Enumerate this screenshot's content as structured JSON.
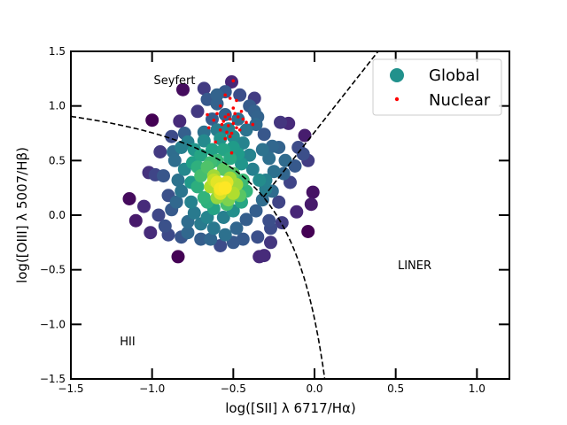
{
  "chart_data": {
    "type": "scatter",
    "xlabel": "log([SII] λ 6717/Hα)",
    "ylabel": "log([OIII] λ 5007/Hβ)",
    "xlim": [
      -1.5,
      1.2
    ],
    "ylim": [
      -1.5,
      1.5
    ],
    "xticks": [
      -1.5,
      -1.0,
      -0.5,
      0.0,
      0.5,
      1.0
    ],
    "xtick_labels": [
      "−1.5",
      "−1.0",
      "−0.5",
      "0.0",
      "0.5",
      "1.0"
    ],
    "yticks": [
      -1.5,
      -1.0,
      -0.5,
      0.0,
      0.5,
      1.0,
      1.5
    ],
    "ytick_labels": [
      "−1.5",
      "−1.0",
      "−0.5",
      "0.0",
      "0.5",
      "1.0",
      "1.5"
    ],
    "grid": false,
    "legend_position": "top-right",
    "legend": [
      {
        "label": "Global",
        "color": "#21918c",
        "marker": "large-circle"
      },
      {
        "label": "Nuclear",
        "color": "#ff0000",
        "marker": "small-dot"
      }
    ],
    "region_labels": [
      {
        "text": "Seyfert",
        "x": -1.0,
        "y": 1.22
      },
      {
        "text": "LINER",
        "x": 0.5,
        "y": -0.46
      },
      {
        "text": "HII",
        "x": -1.2,
        "y": -1.16
      }
    ],
    "boundaries": [
      {
        "name": "Kewley 2001 (star-forming / AGN)",
        "equation": "y = 0.72/(x - 0.32) + 1.30",
        "style": "dashed"
      },
      {
        "name": "Seyfert / LINER",
        "equation": "y = 1.89x + 0.76",
        "style": "dashed"
      }
    ],
    "colormap": "viridis",
    "series": [
      {
        "name": "Global",
        "color_by_density": true,
        "points": [
          [
            -0.51,
            1.22
          ],
          [
            -0.81,
            1.15
          ],
          [
            -0.68,
            1.16
          ],
          [
            -0.55,
            1.13
          ],
          [
            -0.37,
            1.07
          ],
          [
            -0.46,
            1.1
          ],
          [
            -0.66,
            1.06
          ],
          [
            -0.6,
            1.1
          ],
          [
            -0.37,
            0.95
          ],
          [
            -0.16,
            0.84
          ],
          [
            -0.21,
            0.85
          ],
          [
            -0.06,
            0.73
          ],
          [
            -0.1,
            0.62
          ],
          [
            -0.07,
            0.56
          ],
          [
            -0.04,
            0.5
          ],
          [
            -0.22,
            0.62
          ],
          [
            -0.18,
            0.5
          ],
          [
            -0.19,
            0.38
          ],
          [
            -0.01,
            0.21
          ],
          [
            -0.26,
            0.22
          ],
          [
            -0.02,
            0.1
          ],
          [
            -0.11,
            0.03
          ],
          [
            -0.2,
            -0.07
          ],
          [
            -0.04,
            -0.15
          ],
          [
            -0.27,
            -0.12
          ],
          [
            -0.27,
            -0.25
          ],
          [
            -0.31,
            -0.37
          ],
          [
            -0.34,
            -0.38
          ],
          [
            -0.64,
            -0.22
          ],
          [
            -0.78,
            -0.16
          ],
          [
            -0.84,
            -0.38
          ],
          [
            -1.1,
            -0.05
          ],
          [
            -1.14,
            0.15
          ],
          [
            -1.01,
            -0.16
          ],
          [
            -1.05,
            0.08
          ],
          [
            -0.98,
            0.37
          ],
          [
            -1.02,
            0.39
          ],
          [
            -0.95,
            0.58
          ],
          [
            -1.0,
            0.87
          ],
          [
            -0.83,
            0.86
          ],
          [
            -0.93,
            0.36
          ],
          [
            -0.87,
            0.58
          ],
          [
            -0.9,
            0.18
          ],
          [
            -0.82,
            -0.2
          ],
          [
            -0.8,
            0.75
          ],
          [
            -0.78,
            0.67
          ],
          [
            -0.44,
            0.66
          ],
          [
            -0.47,
            0.88
          ],
          [
            -0.55,
            0.92
          ],
          [
            -0.63,
            0.88
          ],
          [
            -0.68,
            0.76
          ],
          [
            -0.36,
            0.83
          ],
          [
            -0.31,
            0.74
          ],
          [
            -0.26,
            0.63
          ],
          [
            -0.32,
            0.6
          ],
          [
            -0.4,
            0.55
          ],
          [
            -0.5,
            0.72
          ],
          [
            -0.53,
            0.79
          ],
          [
            -0.58,
            0.7
          ],
          [
            -0.63,
            0.6
          ],
          [
            -0.7,
            0.55
          ],
          [
            -0.75,
            0.48
          ],
          [
            -0.8,
            0.42
          ],
          [
            -0.84,
            0.32
          ],
          [
            -0.82,
            0.22
          ],
          [
            -0.76,
            0.12
          ],
          [
            -0.74,
            0.02
          ],
          [
            -0.7,
            -0.08
          ],
          [
            -0.62,
            -0.12
          ],
          [
            -0.55,
            -0.18
          ],
          [
            -0.48,
            -0.12
          ],
          [
            -0.42,
            -0.04
          ],
          [
            -0.36,
            0.04
          ],
          [
            -0.32,
            0.14
          ],
          [
            -0.3,
            0.24
          ],
          [
            -0.34,
            0.32
          ],
          [
            -0.38,
            0.42
          ],
          [
            -0.45,
            0.47
          ],
          [
            -0.52,
            0.52
          ],
          [
            -0.6,
            0.5
          ],
          [
            -0.66,
            0.44
          ],
          [
            -0.7,
            0.36
          ],
          [
            -0.72,
            0.26
          ],
          [
            -0.68,
            0.16
          ],
          [
            -0.62,
            0.06
          ],
          [
            -0.56,
            -0.02
          ],
          [
            -0.5,
            0.04
          ],
          [
            -0.45,
            0.12
          ],
          [
            -0.42,
            0.22
          ],
          [
            -0.44,
            0.32
          ],
          [
            -0.5,
            0.38
          ],
          [
            -0.56,
            0.42
          ],
          [
            -0.62,
            0.36
          ],
          [
            -0.64,
            0.26
          ],
          [
            -0.6,
            0.16
          ],
          [
            -0.54,
            0.1
          ],
          [
            -0.5,
            0.2
          ],
          [
            -0.54,
            0.3
          ],
          [
            -0.58,
            0.24
          ],
          [
            -0.56,
            0.6
          ],
          [
            -0.5,
            0.62
          ],
          [
            -0.47,
            0.56
          ],
          [
            -0.55,
            0.25
          ],
          [
            -0.6,
            0.3
          ],
          [
            -0.58,
            0.2
          ],
          [
            -0.52,
            0.34
          ],
          [
            -0.48,
            0.28
          ],
          [
            -0.62,
            0.32
          ],
          [
            -0.66,
            0.12
          ],
          [
            -0.46,
            0.18
          ],
          [
            -0.53,
            0.14
          ],
          [
            -0.64,
            0.48
          ],
          [
            -0.74,
            0.6
          ],
          [
            -0.86,
            0.5
          ],
          [
            -0.88,
            0.05
          ],
          [
            -0.25,
            0.4
          ],
          [
            -0.15,
            0.3
          ],
          [
            -0.12,
            0.45
          ],
          [
            -0.35,
            0.9
          ],
          [
            -0.4,
            1.0
          ],
          [
            -0.6,
            1.02
          ],
          [
            -0.72,
            0.95
          ],
          [
            -0.28,
            -0.05
          ],
          [
            -0.5,
            -0.25
          ],
          [
            -0.58,
            -0.28
          ],
          [
            -0.7,
            -0.22
          ],
          [
            -0.92,
            -0.1
          ],
          [
            -0.96,
            0.0
          ],
          [
            -0.9,
            -0.18
          ],
          [
            -0.78,
            -0.06
          ],
          [
            -0.85,
            0.12
          ],
          [
            -0.76,
            0.3
          ],
          [
            -0.68,
            0.68
          ],
          [
            -0.6,
            0.78
          ],
          [
            -0.42,
            0.78
          ],
          [
            -0.28,
            0.52
          ],
          [
            -0.3,
            0.32
          ],
          [
            -0.22,
            0.12
          ],
          [
            -0.35,
            -0.2
          ],
          [
            -0.44,
            -0.22
          ],
          [
            -0.66,
            -0.02
          ],
          [
            -0.72,
            0.44
          ],
          [
            -0.82,
            0.62
          ],
          [
            -0.88,
            0.72
          ]
        ]
      },
      {
        "name": "Nuclear",
        "color": "#ff0000",
        "points": [
          [
            -0.5,
            1.23
          ],
          [
            -0.55,
            1.1
          ],
          [
            -0.52,
            1.07
          ],
          [
            -0.48,
            1.05
          ],
          [
            -0.58,
            1.0
          ],
          [
            -0.5,
            0.98
          ],
          [
            -0.45,
            0.95
          ],
          [
            -0.6,
            0.93
          ],
          [
            -0.55,
            0.9
          ],
          [
            -0.52,
            0.88
          ],
          [
            -0.47,
            0.9
          ],
          [
            -0.42,
            0.85
          ],
          [
            -0.62,
            0.87
          ],
          [
            -0.57,
            0.83
          ],
          [
            -0.53,
            0.82
          ],
          [
            -0.5,
            0.84
          ],
          [
            -0.48,
            0.8
          ],
          [
            -0.58,
            0.78
          ],
          [
            -0.54,
            0.76
          ],
          [
            -0.51,
            0.75
          ],
          [
            -0.46,
            0.78
          ],
          [
            -0.65,
            0.8
          ],
          [
            -0.55,
            0.7
          ],
          [
            -0.52,
            0.72
          ],
          [
            -0.38,
            0.83
          ],
          [
            -0.61,
            0.67
          ],
          [
            -0.51,
            0.57
          ],
          [
            -0.56,
            0.86
          ],
          [
            -0.53,
            0.92
          ],
          [
            -0.49,
            0.93
          ],
          [
            -0.66,
            0.92
          ],
          [
            -0.44,
            0.88
          ]
        ]
      }
    ]
  }
}
